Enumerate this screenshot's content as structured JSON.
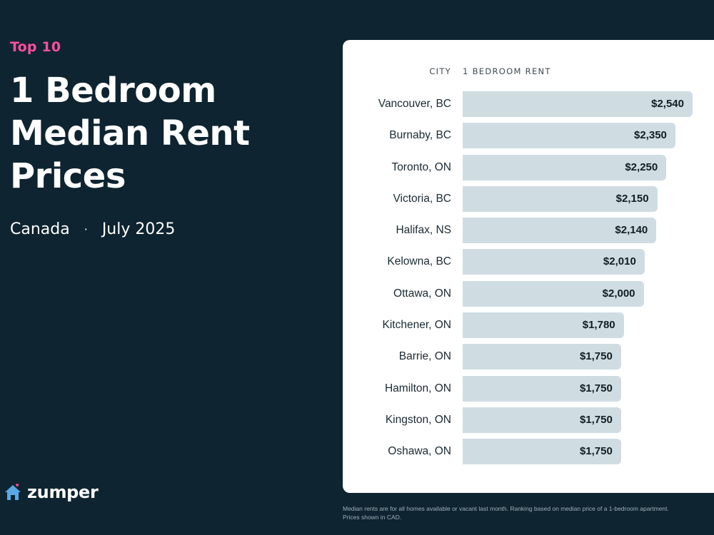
{
  "header": {
    "eyebrow": "Top 10",
    "title_lines": [
      "1 Bedroom",
      "Median Rent",
      "Prices"
    ],
    "country": "Canada",
    "separator": "·",
    "period": "July 2025"
  },
  "brand": {
    "name": "zumper",
    "icon": "house-heart-icon",
    "accent": "#ff4fa0",
    "icon_color": "#5aa9e6"
  },
  "colors": {
    "background": "#0e2430",
    "bar": "#cfdde3",
    "card": "#ffffff"
  },
  "chart_data": {
    "type": "bar",
    "orientation": "horizontal",
    "column_headers": {
      "category": "CITY",
      "value": "1 BEDROOM RENT"
    },
    "categories": [
      "Vancouver, BC",
      "Burnaby, BC",
      "Toronto, ON",
      "Victoria, BC",
      "Halifax, NS",
      "Kelowna, BC",
      "Ottawa, ON",
      "Kitchener, ON",
      "Barrie, ON",
      "Hamilton, ON",
      "Kingston, ON",
      "Oshawa, ON"
    ],
    "values": [
      2540,
      2350,
      2250,
      2150,
      2140,
      2010,
      2000,
      1780,
      1750,
      1750,
      1750,
      1750
    ],
    "value_labels": [
      "$2,540",
      "$2,350",
      "$2,250",
      "$2,150",
      "$2,140",
      "$2,010",
      "$2,000",
      "$1,780",
      "$1,750",
      "$1,750",
      "$1,750",
      "$1,750"
    ],
    "xlim": [
      0,
      2540
    ],
    "grid": false
  },
  "footnote": "Median rents are for all homes available or vacant last month. Ranking based on median price of a 1-bedroom apartment. Prices shown in CAD."
}
